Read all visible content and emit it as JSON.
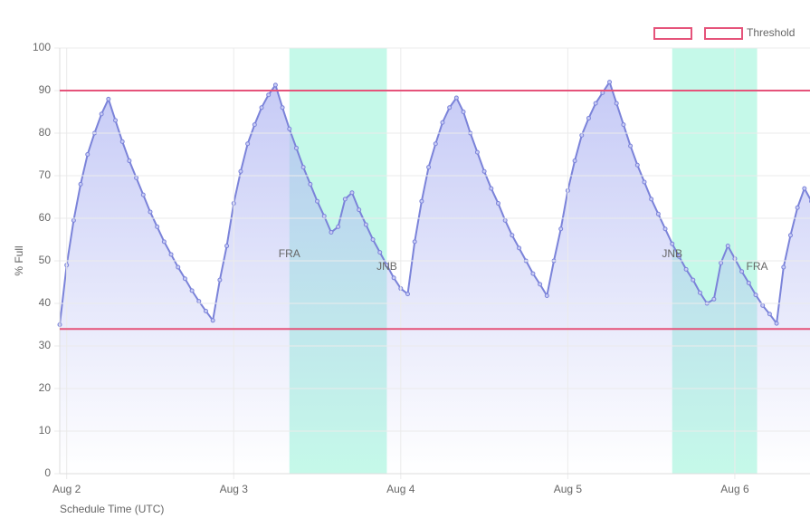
{
  "chart_data": {
    "type": "line",
    "x_label": "Schedule Time (UTC)",
    "y_label": "% Full",
    "x": [
      -1,
      0,
      1,
      2,
      3,
      4,
      5,
      6,
      7,
      8,
      9,
      10,
      11,
      12,
      13,
      14,
      15,
      16,
      17,
      18,
      19,
      20,
      21,
      22,
      23,
      24,
      25,
      26,
      27,
      28,
      29,
      30,
      31,
      32,
      33,
      34,
      35,
      36,
      37,
      38,
      39,
      40,
      41,
      42,
      43,
      44,
      45,
      46,
      47,
      48,
      49,
      50,
      51,
      52,
      53,
      54,
      55,
      56,
      57,
      58,
      59,
      60,
      61,
      62,
      63,
      64,
      65,
      66,
      67,
      68,
      69,
      70,
      71,
      72,
      73,
      74,
      75,
      76,
      77,
      78,
      79,
      80,
      81,
      82,
      83,
      84,
      85,
      86,
      87,
      88,
      89,
      90,
      91,
      92,
      93,
      94,
      95,
      96,
      97,
      98,
      99,
      100,
      101,
      102,
      103,
      104,
      105,
      106,
      107
    ],
    "series": [
      {
        "color": "#7b83d9",
        "values": [
          35,
          49,
          59.5,
          68,
          75,
          80,
          84.5,
          88,
          83,
          78,
          73.5,
          69.5,
          65.5,
          61.5,
          58,
          54.5,
          51.5,
          48.5,
          45.8,
          43,
          40.5,
          38.2,
          36,
          45.5,
          53.5,
          63.5,
          71,
          77.5,
          82,
          86,
          89,
          91.3,
          86,
          81,
          76.5,
          72,
          68,
          64,
          60.5,
          56.7,
          58,
          64.5,
          66,
          62,
          58.5,
          55,
          52,
          49,
          46,
          43.5,
          42.2,
          54.5,
          64,
          72,
          77.5,
          82.5,
          86,
          88.3,
          85,
          80,
          75.5,
          71,
          67,
          63.5,
          59.5,
          56,
          53,
          50,
          47,
          44.5,
          41.8,
          50,
          57.5,
          66.5,
          73.5,
          79.5,
          83.5,
          87,
          89.5,
          92,
          87,
          82,
          77,
          72.5,
          68.5,
          64.5,
          61,
          57.5,
          54,
          51,
          48,
          45.5,
          42.5,
          40,
          41,
          49.5,
          53.5,
          50.5,
          47.5,
          44.8,
          42,
          39.5,
          37.5,
          35.3,
          48.5,
          56,
          62.5,
          67,
          64
        ]
      }
    ],
    "xlim": [
      -1,
      106.8
    ],
    "ylim": [
      0,
      100
    ],
    "xticks": [
      {
        "value": 0,
        "label": "Aug 2"
      },
      {
        "value": 24,
        "label": "Aug 3"
      },
      {
        "value": 48,
        "label": "Aug 4"
      },
      {
        "value": 72,
        "label": "Aug 5"
      },
      {
        "value": 96,
        "label": "Aug 6"
      }
    ],
    "yticks": [
      0,
      10,
      20,
      30,
      40,
      50,
      60,
      70,
      80,
      90,
      100
    ],
    "grid": true,
    "legend": "top-right",
    "thresholds": [
      {
        "value": 90,
        "color": "#e5537a"
      },
      {
        "value": 34,
        "color": "#e5537a",
        "name": "Threshold"
      }
    ],
    "regions": [
      {
        "start": 32,
        "end": 46,
        "start_label": "FRA",
        "end_label": "JNB",
        "color": "#9ff5db"
      },
      {
        "start": 87,
        "end": 99.2,
        "start_label": "JNB",
        "end_label": "FRA",
        "color": "#9ff5db"
      }
    ]
  }
}
